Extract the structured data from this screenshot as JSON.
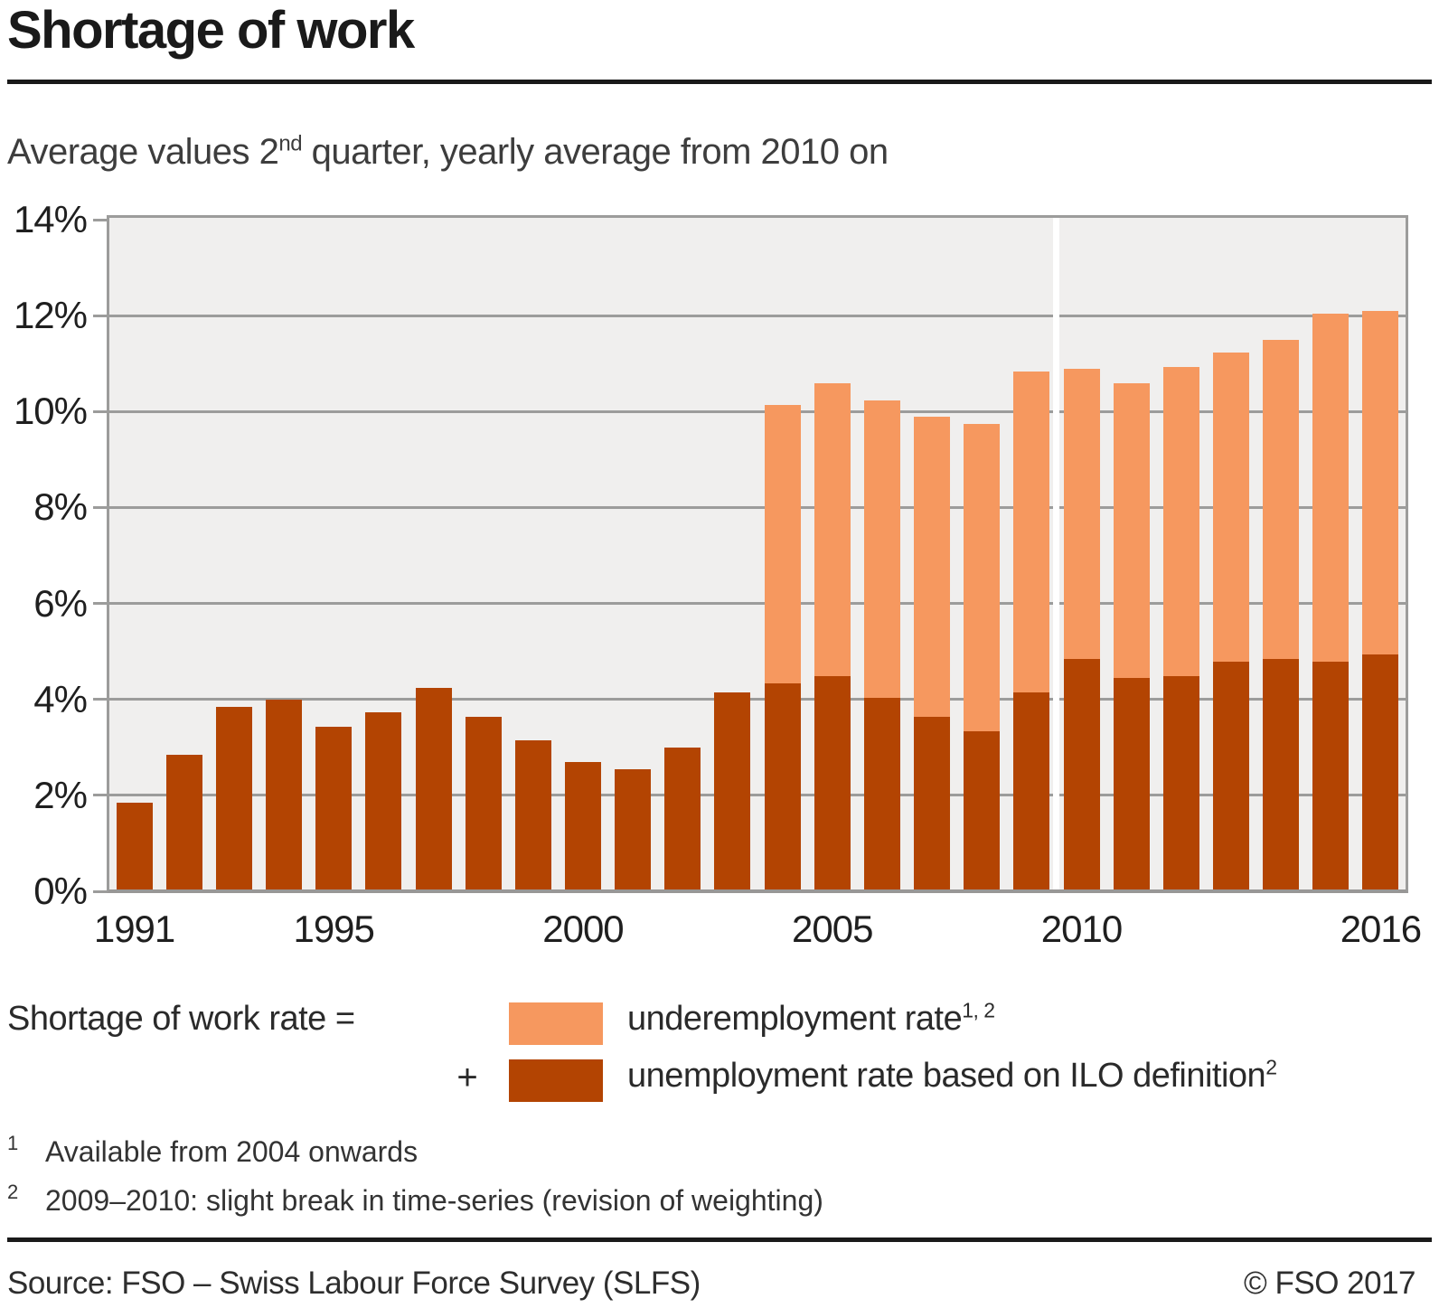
{
  "header": {
    "title": "Shortage of work"
  },
  "subtitle": {
    "prefix": "Average values 2",
    "sup": "nd",
    "suffix": " quarter, yearly average from 2010 on"
  },
  "legend": {
    "formula_label": "Shortage of work rate =",
    "plus": "+",
    "items": [
      {
        "label": "underemployment rate",
        "sup": "1, 2",
        "color": "#F6985F"
      },
      {
        "label": "unemployment rate based on ILO definition",
        "sup": "2",
        "color": "#B34402"
      }
    ]
  },
  "footnotes": [
    {
      "marker": "1",
      "text": "Available from 2004 onwards"
    },
    {
      "marker": "2",
      "text": "2009–2010: slight break in time-series (revision of weighting)"
    }
  ],
  "footer": {
    "source": "Source: FSO – Swiss Labour Force Survey (SLFS)",
    "copyright": "© FSO 2017"
  },
  "chart_data": {
    "type": "bar",
    "stacked": true,
    "x": [
      1991,
      1992,
      1993,
      1994,
      1995,
      1996,
      1997,
      1998,
      1999,
      2000,
      2001,
      2002,
      2003,
      2004,
      2005,
      2006,
      2007,
      2008,
      2009,
      2010,
      2011,
      2012,
      2013,
      2014,
      2015,
      2016
    ],
    "series": [
      {
        "name": "unemployment rate based on ILO definition",
        "color": "#B34402",
        "values": [
          1.8,
          2.8,
          3.8,
          3.95,
          3.4,
          3.7,
          4.2,
          3.6,
          3.1,
          2.65,
          2.5,
          2.95,
          4.1,
          4.3,
          4.45,
          4.0,
          3.6,
          3.3,
          4.1,
          4.8,
          4.4,
          4.45,
          4.75,
          4.8,
          4.75,
          4.9
        ]
      },
      {
        "name": "underemployment rate",
        "color": "#F6985F",
        "values": [
          0,
          0,
          0,
          0,
          0,
          0,
          0,
          0,
          0,
          0,
          0,
          0,
          0,
          5.8,
          6.1,
          6.2,
          6.25,
          6.4,
          6.7,
          6.05,
          6.15,
          6.45,
          6.45,
          6.65,
          7.25,
          7.15
        ]
      }
    ],
    "totals": [
      1.8,
      2.8,
      3.8,
      3.95,
      3.4,
      3.7,
      4.2,
      3.6,
      3.1,
      2.65,
      2.5,
      2.95,
      4.1,
      10.1,
      10.55,
      10.2,
      9.85,
      9.7,
      10.8,
      10.85,
      10.55,
      10.9,
      11.2,
      11.45,
      12.0,
      12.05
    ],
    "ylim": [
      0,
      14
    ],
    "y_ticks": [
      "0%",
      "2%",
      "4%",
      "6%",
      "8%",
      "10%",
      "12%",
      "14%"
    ],
    "y_tick_values": [
      0,
      2,
      4,
      6,
      8,
      10,
      12,
      14
    ],
    "x_tick_years": [
      1991,
      1995,
      2000,
      2005,
      2010,
      2016
    ],
    "break_between": [
      2009,
      2010
    ],
    "grid": true,
    "plot_bg": "#F0EFEE",
    "grid_color": "#9C9C9B",
    "legend_position": "below"
  }
}
